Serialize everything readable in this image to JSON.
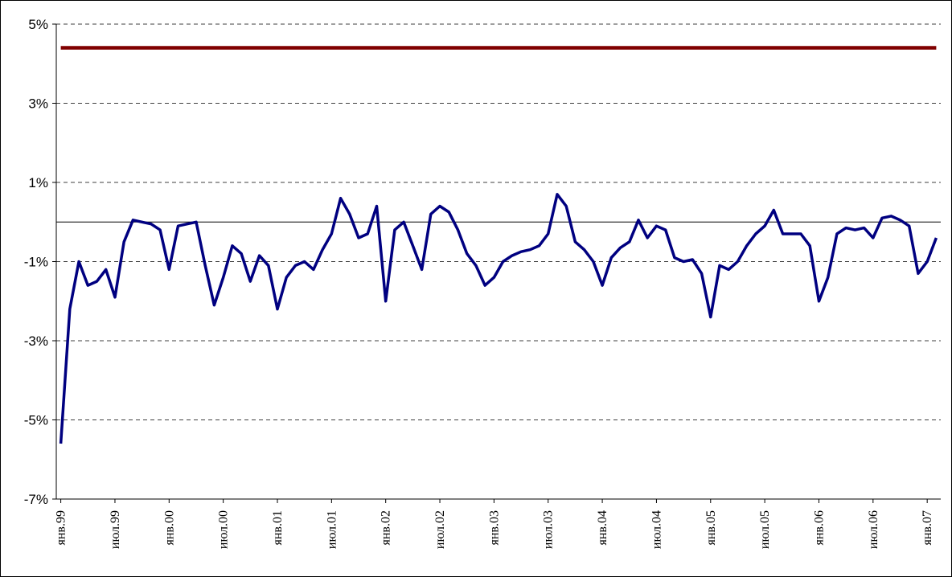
{
  "chart_data": {
    "type": "line",
    "categories": [
      "янв.99",
      null,
      null,
      null,
      null,
      null,
      "июл.99",
      null,
      null,
      null,
      null,
      null,
      "янв.00",
      null,
      null,
      null,
      null,
      null,
      "июл.00",
      null,
      null,
      null,
      null,
      null,
      "янв.01",
      null,
      null,
      null,
      null,
      null,
      "июл.01",
      null,
      null,
      null,
      null,
      null,
      "янв.02",
      null,
      null,
      null,
      null,
      null,
      "июл.02",
      null,
      null,
      null,
      null,
      null,
      "янв.03",
      null,
      null,
      null,
      null,
      null,
      "июл.03",
      null,
      null,
      null,
      null,
      null,
      "янв.04",
      null,
      null,
      null,
      null,
      null,
      "июл.04",
      null,
      null,
      null,
      null,
      null,
      "янв.05",
      null,
      null,
      null,
      null,
      null,
      "июл.05",
      null,
      null,
      null,
      null,
      null,
      "янв.06",
      null,
      null,
      null,
      null,
      null,
      "июл.06",
      null,
      null,
      null,
      null,
      null,
      "янв.07",
      null
    ],
    "series": [
      {
        "color": "#000080",
        "values": [
          -5.6,
          -2.2,
          -1.0,
          -1.6,
          -1.5,
          -1.2,
          -1.9,
          -0.5,
          0.05,
          0.0,
          -0.05,
          -0.2,
          -1.2,
          -0.1,
          -0.05,
          0.0,
          -1.1,
          -2.1,
          -1.4,
          -0.6,
          -0.8,
          -1.5,
          -0.85,
          -1.1,
          -2.2,
          -1.4,
          -1.1,
          -1.0,
          -1.2,
          -0.7,
          -0.3,
          0.6,
          0.2,
          -0.4,
          -0.3,
          0.4,
          -2.0,
          -0.2,
          0.0,
          -0.6,
          -1.2,
          0.2,
          0.4,
          0.25,
          -0.2,
          -0.8,
          -1.1,
          -1.6,
          -1.4,
          -1.0,
          -0.85,
          -0.75,
          -0.7,
          -0.6,
          -0.3,
          0.7,
          0.4,
          -0.5,
          -0.7,
          -1.0,
          -1.6,
          -0.9,
          -0.65,
          -0.5,
          0.05,
          -0.4,
          -0.1,
          -0.2,
          -0.9,
          -1.0,
          -0.95,
          -1.3,
          -2.4,
          -1.1,
          -1.2,
          -1.0,
          -0.6,
          -0.3,
          -0.1,
          0.3,
          -0.3,
          -0.3,
          -0.3,
          -0.6,
          -2.0,
          -1.4,
          -0.3,
          -0.15,
          -0.2,
          -0.15,
          -0.4,
          0.1,
          0.15,
          0.05,
          -0.1,
          -1.3,
          -1.0,
          -0.4
        ]
      },
      {
        "color": "#800000",
        "values": [
          4.4,
          4.4,
          4.4,
          4.4,
          4.4,
          4.4,
          4.4,
          4.4,
          4.4,
          4.4,
          4.4,
          4.4,
          4.4,
          4.4,
          4.4,
          4.4,
          4.4,
          4.4,
          4.4,
          4.4,
          4.4,
          4.4,
          4.4,
          4.4,
          4.4,
          4.4,
          4.4,
          4.4,
          4.4,
          4.4,
          4.4,
          4.4,
          4.4,
          4.4,
          4.4,
          4.4,
          4.4,
          4.4,
          4.4,
          4.4,
          4.4,
          4.4,
          4.4,
          4.4,
          4.4,
          4.4,
          4.4,
          4.4,
          4.4,
          4.4,
          4.4,
          4.4,
          4.4,
          4.4,
          4.4,
          4.4,
          4.4,
          4.4,
          4.4,
          4.4,
          4.4,
          4.4,
          4.4,
          4.4,
          4.4,
          4.4,
          4.4,
          4.4,
          4.4,
          4.4,
          4.4,
          4.4,
          4.4,
          4.4,
          4.4,
          4.4,
          4.4,
          4.4,
          4.4,
          4.4,
          4.4,
          4.4,
          4.4,
          4.4,
          4.4,
          4.4,
          4.4,
          4.4,
          4.4,
          4.4,
          4.4,
          4.4,
          4.4,
          4.4,
          4.4,
          4.4,
          4.4,
          4.4
        ]
      }
    ],
    "ylim": [
      -7,
      5
    ],
    "yticks": [
      {
        "value": 5,
        "label": "5%"
      },
      {
        "value": 3,
        "label": "3%"
      },
      {
        "value": 1,
        "label": "1%"
      },
      {
        "value": -1,
        "label": "-1%"
      },
      {
        "value": -3,
        "label": "-3%"
      },
      {
        "value": -5,
        "label": "-5%"
      },
      {
        "value": -7,
        "label": "-7%"
      }
    ],
    "grid": true
  }
}
